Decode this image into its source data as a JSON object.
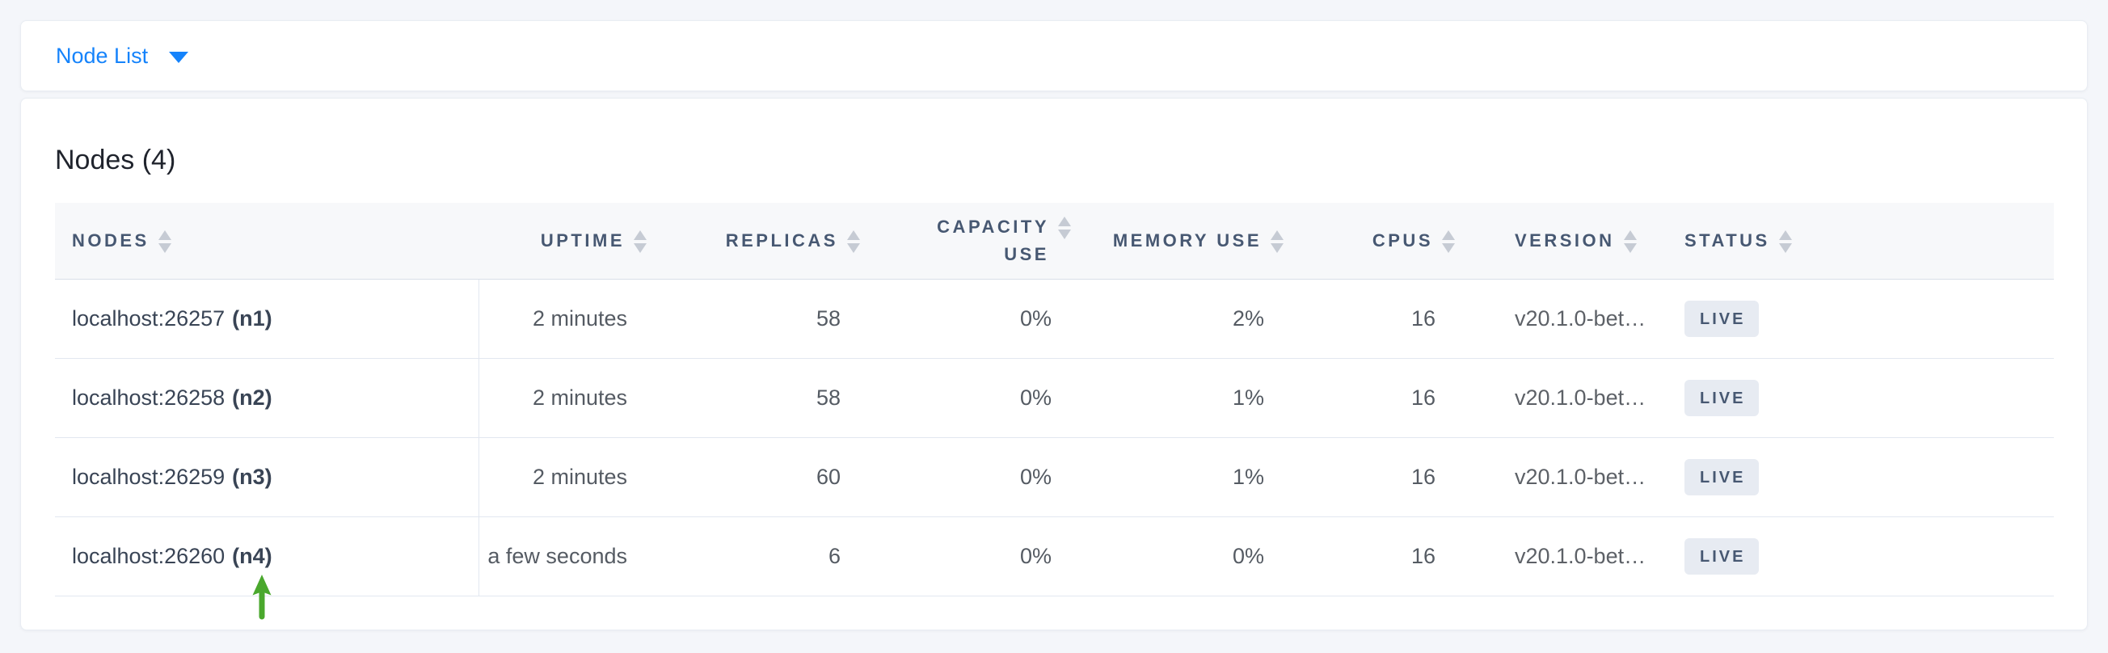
{
  "colors": {
    "page_background": "#f4f6fa",
    "accent_blue": "#1583fb",
    "annotation_green": "#4aa82d",
    "badge_background": "#e7ebf2",
    "badge_text": "#475872"
  },
  "toolbar": {
    "view_selector_label": "Node List",
    "dropdown_icon": "caret-down-icon"
  },
  "main": {
    "title": "Nodes (4)"
  },
  "table": {
    "columns": [
      {
        "key": "nodes",
        "label": "NODES",
        "align": "left",
        "sort_icon": "sort-arrows-icon"
      },
      {
        "key": "uptime",
        "label": "UPTIME",
        "align": "right",
        "sort_icon": "sort-arrows-icon"
      },
      {
        "key": "replicas",
        "label": "REPLICAS",
        "align": "right",
        "sort_icon": "sort-arrows-icon"
      },
      {
        "key": "capacity_use",
        "label": "CAPACITY USE",
        "align": "right",
        "sort_icon": "sort-arrows-icon"
      },
      {
        "key": "memory_use",
        "label": "MEMORY USE",
        "align": "right",
        "sort_icon": "sort-arrows-icon"
      },
      {
        "key": "cpus",
        "label": "CPUS",
        "align": "right",
        "sort_icon": "sort-arrows-icon"
      },
      {
        "key": "version",
        "label": "VERSION",
        "align": "left",
        "sort_icon": "sort-arrows-icon"
      },
      {
        "key": "status",
        "label": "STATUS",
        "align": "left",
        "sort_icon": "sort-arrows-icon"
      }
    ],
    "rows": [
      {
        "node_address": "localhost:26257",
        "node_id": "(n1)",
        "uptime": "2 minutes",
        "replicas": "58",
        "capacity_use": "0%",
        "memory_use": "2%",
        "cpus": "16",
        "version": "v20.1.0-bet…",
        "status": "LIVE"
      },
      {
        "node_address": "localhost:26258",
        "node_id": "(n2)",
        "uptime": "2 minutes",
        "replicas": "58",
        "capacity_use": "0%",
        "memory_use": "1%",
        "cpus": "16",
        "version": "v20.1.0-bet…",
        "status": "LIVE"
      },
      {
        "node_address": "localhost:26259",
        "node_id": "(n3)",
        "uptime": "2 minutes",
        "replicas": "60",
        "capacity_use": "0%",
        "memory_use": "1%",
        "cpus": "16",
        "version": "v20.1.0-bet…",
        "status": "LIVE"
      },
      {
        "node_address": "localhost:26260",
        "node_id": "(n4)",
        "uptime": "a few seconds",
        "replicas": "6",
        "capacity_use": "0%",
        "memory_use": "0%",
        "cpus": "16",
        "version": "v20.1.0-bet…",
        "status": "LIVE"
      }
    ]
  },
  "annotation": {
    "icon": "green-up-arrow-icon",
    "points_at": "(n4)"
  }
}
